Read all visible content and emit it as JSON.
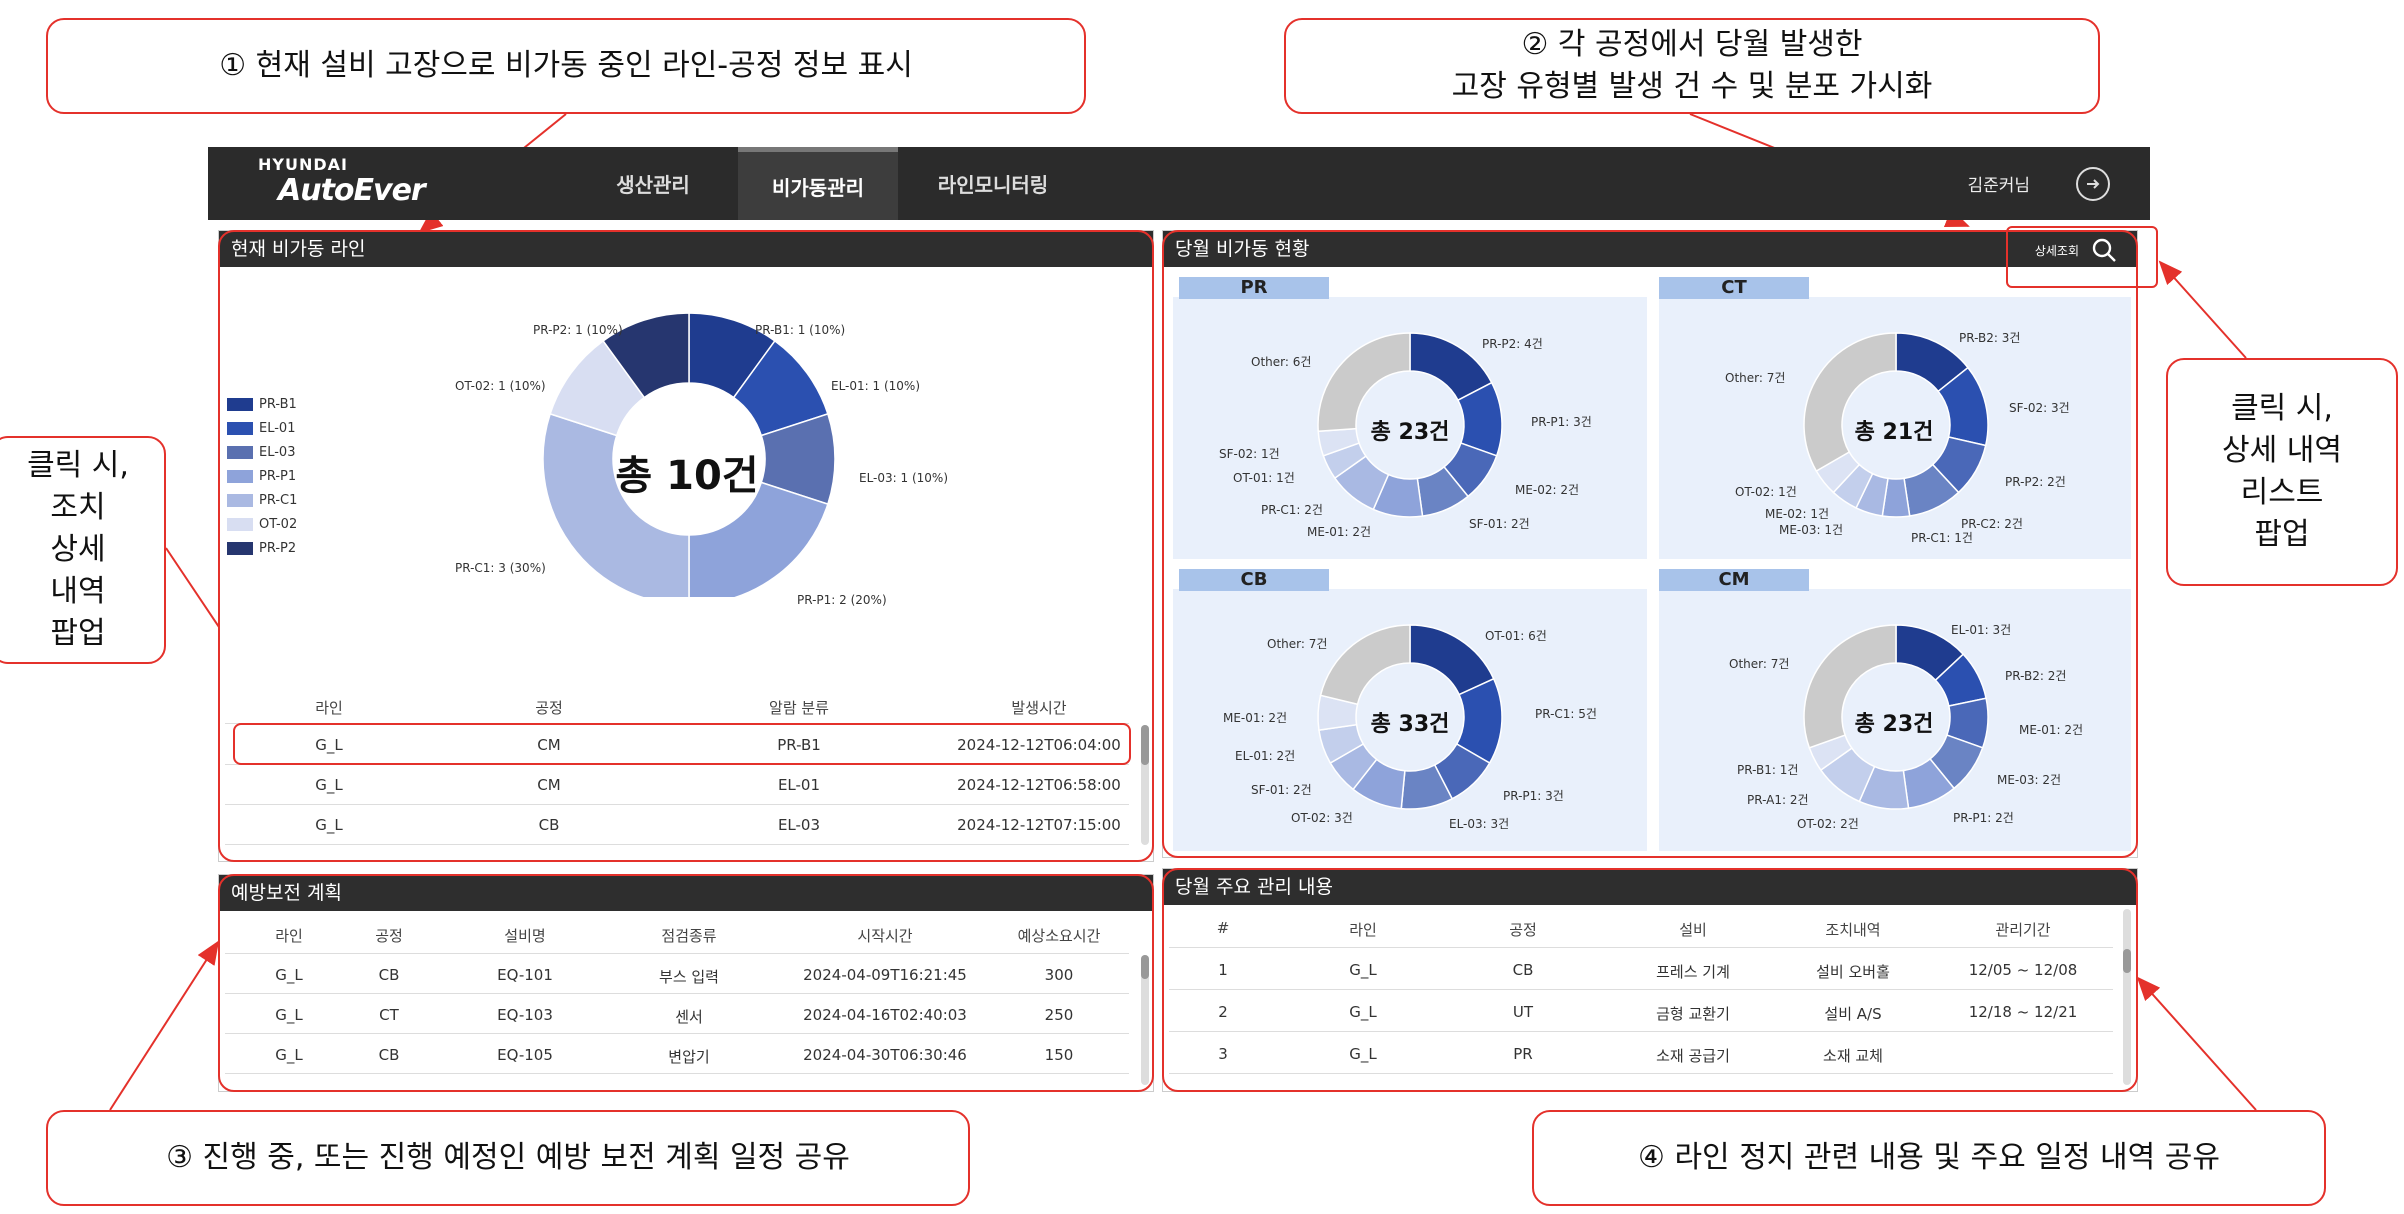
{
  "callouts": {
    "c1": "① 현재 설비 고장으로 비가동 중인 라인-공정 정보 표시",
    "c2": "② 각 공정에서 당월 발생한\n고장 유형별 발생 건 수 및 분포 가시화",
    "c3": "③ 진행 중, 또는 진행 예정인 예방 보전 계획 일정 공유",
    "c4": "④ 라인 정지 관련 내용 및 주요 일정 내역 공유",
    "left": "클릭 시,\n조치\n상세\n내역\n팝업",
    "right": "클릭 시,\n상세 내역\n리스트\n팝업"
  },
  "nav": {
    "logo_top": "HYUNDAI",
    "logo_main": "AutoEver",
    "tabs": [
      "생산관리",
      "비가동관리",
      "라인모니터링"
    ],
    "active_tab": "비가동관리",
    "user": "김준커님"
  },
  "current": {
    "title": "현재 비가동 라인",
    "total_label": "총 10건",
    "legend": [
      "PR-B1",
      "EL-01",
      "EL-03",
      "PR-P1",
      "PR-C1",
      "OT-02",
      "PR-P2"
    ],
    "slice_labels": [
      "PR-B1: 1 (10%)",
      "EL-01: 1 (10%)",
      "EL-03: 1 (10%)",
      "PR-P1: 2 (20%)",
      "PR-C1: 3 (30%)",
      "OT-02: 1 (10%)",
      "PR-P2: 1 (10%)"
    ],
    "table": {
      "headers": [
        "라인",
        "공정",
        "알람 분류",
        "발생시간"
      ],
      "rows": [
        [
          "G_L",
          "CM",
          "PR-B1",
          "2024-12-12T06:04:00"
        ],
        [
          "G_L",
          "CM",
          "EL-01",
          "2024-12-12T06:58:00"
        ],
        [
          "G_L",
          "CB",
          "EL-03",
          "2024-12-12T07:15:00"
        ]
      ]
    }
  },
  "monthly": {
    "title": "당월 비가동 현황",
    "detail_button": "상세조회",
    "procs": [
      {
        "tag": "PR",
        "total": "총 23건",
        "labels": [
          "PR-P2: 4건",
          "PR-P1: 3건",
          "ME-02: 2건",
          "SF-01: 2건",
          "ME-01: 2건",
          "PR-C1: 2건",
          "OT-01: 1건",
          "SF-02: 1건",
          "Other: 6건"
        ]
      },
      {
        "tag": "CT",
        "total": "총 21건",
        "labels": [
          "PR-B2: 3건",
          "SF-02: 3건",
          "PR-P2: 2건",
          "PR-C2: 2건",
          "PR-C1: 1건",
          "ME-03: 1건",
          "ME-02: 1건",
          "OT-02: 1건",
          "Other: 7건"
        ]
      },
      {
        "tag": "CB",
        "total": "총 33건",
        "labels": [
          "OT-01: 6건",
          "PR-C1: 5건",
          "PR-P1: 3건",
          "EL-03: 3건",
          "OT-02: 3건",
          "SF-01: 2건",
          "EL-01: 2건",
          "ME-01: 2건",
          "Other: 7건"
        ]
      },
      {
        "tag": "CM",
        "total": "총 23건",
        "labels": [
          "EL-01: 3건",
          "PR-B2: 2건",
          "ME-01: 2건",
          "ME-03: 2건",
          "PR-P1: 2건",
          "OT-02: 2건",
          "PR-A1: 2건",
          "PR-B1: 1건",
          "Other: 7건"
        ]
      }
    ]
  },
  "preventive": {
    "title": "예방보전 계획",
    "headers": [
      "라인",
      "공정",
      "설비명",
      "점검종류",
      "시작시간",
      "예상소요시간"
    ],
    "rows": [
      [
        "G_L",
        "CB",
        "EQ-101",
        "부스 입력",
        "2024-04-09T16:21:45",
        "300"
      ],
      [
        "G_L",
        "CT",
        "EQ-103",
        "센서",
        "2024-04-16T02:40:03",
        "250"
      ],
      [
        "G_L",
        "CB",
        "EQ-105",
        "변압기",
        "2024-04-30T06:30:46",
        "150"
      ]
    ]
  },
  "management": {
    "title": "당월 주요 관리 내용",
    "headers": [
      "#",
      "라인",
      "공정",
      "설비",
      "조치내역",
      "관리기간"
    ],
    "rows": [
      [
        "1",
        "G_L",
        "CB",
        "프레스 기계",
        "설비 오버홀",
        "12/05 ~ 12/08"
      ],
      [
        "2",
        "G_L",
        "UT",
        "금형 교환기",
        "설비 A/S",
        "12/18 ~ 12/21"
      ],
      [
        "3",
        "G_L",
        "PR",
        "소재 공급기",
        "소재 교체",
        ""
      ]
    ]
  },
  "chart_data": [
    {
      "type": "pie",
      "title": "현재 비가동 라인",
      "categories": [
        "PR-B1",
        "EL-01",
        "EL-03",
        "PR-P1",
        "PR-C1",
        "OT-02",
        "PR-P2"
      ],
      "values": [
        1,
        1,
        1,
        2,
        3,
        1,
        1
      ],
      "colors": [
        "#1f3c8f",
        "#2b50b0",
        "#5a70b0",
        "#8ea3da",
        "#aab9e2",
        "#d8def2",
        "#26366f"
      ]
    },
    {
      "type": "pie",
      "title": "PR",
      "categories": [
        "PR-P2",
        "PR-P1",
        "ME-02",
        "SF-01",
        "ME-01",
        "PR-C1",
        "OT-01",
        "SF-02",
        "Other"
      ],
      "values": [
        4,
        3,
        2,
        2,
        2,
        2,
        1,
        1,
        6
      ]
    },
    {
      "type": "pie",
      "title": "CT",
      "categories": [
        "PR-B2",
        "SF-02",
        "PR-P2",
        "PR-C2",
        "PR-C1",
        "ME-03",
        "ME-02",
        "OT-02",
        "Other"
      ],
      "values": [
        3,
        3,
        2,
        2,
        1,
        1,
        1,
        1,
        7
      ]
    },
    {
      "type": "pie",
      "title": "CB",
      "categories": [
        "OT-01",
        "PR-C1",
        "PR-P1",
        "EL-03",
        "OT-02",
        "SF-01",
        "EL-01",
        "ME-01",
        "Other"
      ],
      "values": [
        6,
        5,
        3,
        3,
        3,
        2,
        2,
        2,
        7
      ]
    },
    {
      "type": "pie",
      "title": "CM",
      "categories": [
        "EL-01",
        "PR-B2",
        "ME-01",
        "ME-03",
        "PR-P1",
        "OT-02",
        "PR-A1",
        "PR-B1",
        "Other"
      ],
      "values": [
        3,
        2,
        2,
        2,
        2,
        2,
        2,
        1,
        7
      ]
    }
  ],
  "palette": [
    "#1f3c8f",
    "#2b50b0",
    "#4a68b8",
    "#6a84c4",
    "#8ea3da",
    "#a9b9e3",
    "#c3cfec",
    "#dce3f4",
    "#cbcbcb"
  ]
}
